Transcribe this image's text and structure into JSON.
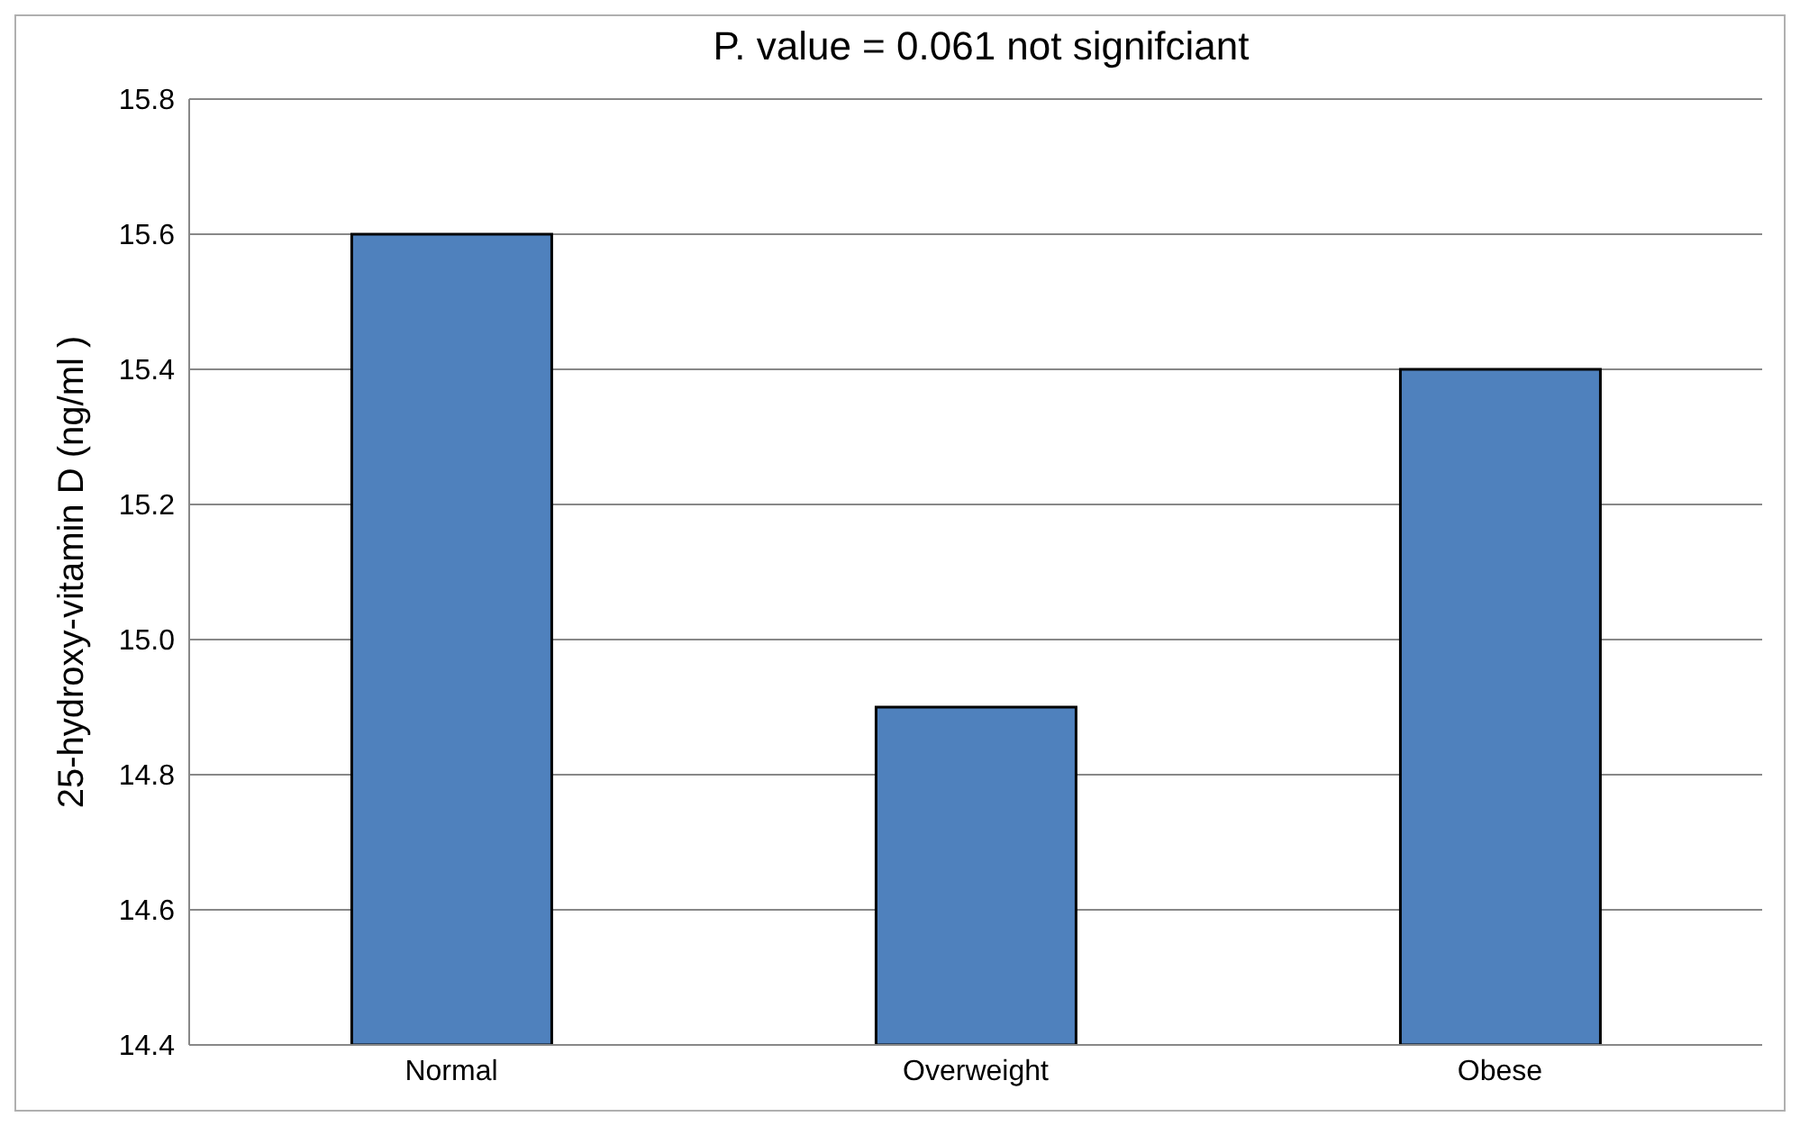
{
  "chart_data": {
    "type": "bar",
    "title": "P. value = 0.061 not signifciant",
    "ylabel": "25-hydroxy-vitamin D (ng/ml )",
    "categories": [
      "Normal",
      "Overweight",
      "Obese"
    ],
    "values": [
      15.6,
      14.9,
      15.4
    ],
    "color": "#4f81bd",
    "ylim": [
      14.4,
      15.8
    ],
    "yticks": [
      14.4,
      14.6,
      14.8,
      {
        "value": 15,
        "label": "15.0"
      },
      15.2,
      15.4,
      15.6,
      15.8
    ],
    "grid": "y",
    "legend": false
  }
}
